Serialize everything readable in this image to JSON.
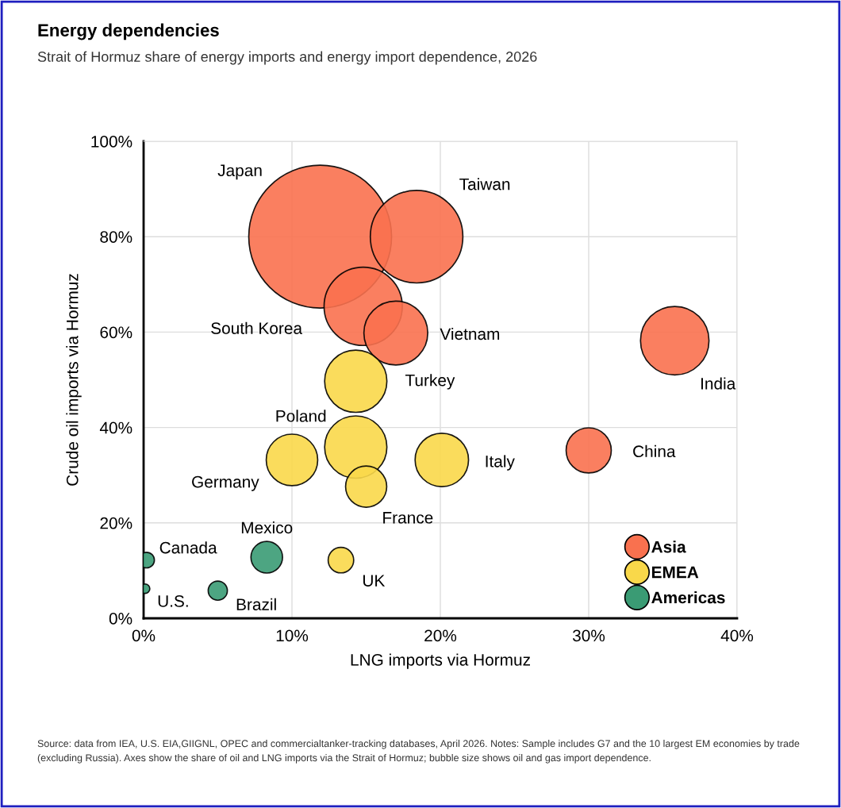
{
  "chart_data": {
    "type": "bubble",
    "title": "Energy dependencies",
    "subtitle": "Strait of Hormuz share of energy imports and energy import dependence, 2026",
    "xlabel": "LNG imports via Hormuz",
    "ylabel": "Crude oil imports via Hormuz",
    "xlim": [
      0,
      40
    ],
    "ylim": [
      0,
      100
    ],
    "xticks": [
      {
        "value": 0,
        "label": "0%"
      },
      {
        "value": 10,
        "label": "10%"
      },
      {
        "value": 20,
        "label": "20%"
      },
      {
        "value": 30,
        "label": "30%"
      },
      {
        "value": 40,
        "label": "40%"
      }
    ],
    "yticks": [
      {
        "value": 0,
        "label": "0%"
      },
      {
        "value": 20,
        "label": "20%"
      },
      {
        "value": 40,
        "label": "40%"
      },
      {
        "value": 60,
        "label": "60%"
      },
      {
        "value": 80,
        "label": "80%"
      },
      {
        "value": 100,
        "label": "100%"
      }
    ],
    "grid": true,
    "legend": "bottom right",
    "series": [
      {
        "name": "Asia",
        "color": "#f9714f",
        "x": [
          11.9,
          18.4,
          14.8,
          17.0,
          35.8,
          30.0
        ],
        "values": [
          80,
          80,
          65.4,
          59.8,
          58.2,
          35.2
        ],
        "sizes": [
          1,
          0.42,
          0.3,
          0.2,
          0.23,
          0.1
        ]
      },
      {
        "name": "EMEA",
        "color": "#f9d84a",
        "x": [
          14.3,
          14.3,
          10.0,
          15.0,
          20.1,
          13.3
        ],
        "values": [
          49.7,
          35.9,
          33.2,
          27.6,
          33.2,
          12.2
        ],
        "sizes": [
          0.19,
          0.19,
          0.13,
          0.083,
          0.14,
          0.032
        ]
      },
      {
        "name": "Americas",
        "color": "#3a9b74",
        "x": [
          0.2,
          0.1,
          8.3,
          5.0
        ],
        "values": [
          12.2,
          6.2,
          12.8,
          5.8
        ],
        "sizes": [
          0.012,
          0.0044,
          0.049,
          0.018
        ]
      }
    ],
    "annotations": [
      "Japan",
      "Taiwan",
      "South Korea",
      "Vietnam",
      "India",
      "China",
      "Turkey",
      "Poland",
      "Germany",
      "France",
      "Italy",
      "UK",
      "Canada",
      "U.S.",
      "Mexico",
      "Brazil",
      "Source: data from IEA, U.S. EIA,GIIGNL, OPEC and commercialtanker-tracking databases, April 2026. Notes: Sample includes G7 and the 10 largest EM economies by trade (excluding Russia). Axes show the share of oil and LNG imports via the Strait of Hormuz; bubble size shows oil and gas import dependence."
    ]
  }
}
